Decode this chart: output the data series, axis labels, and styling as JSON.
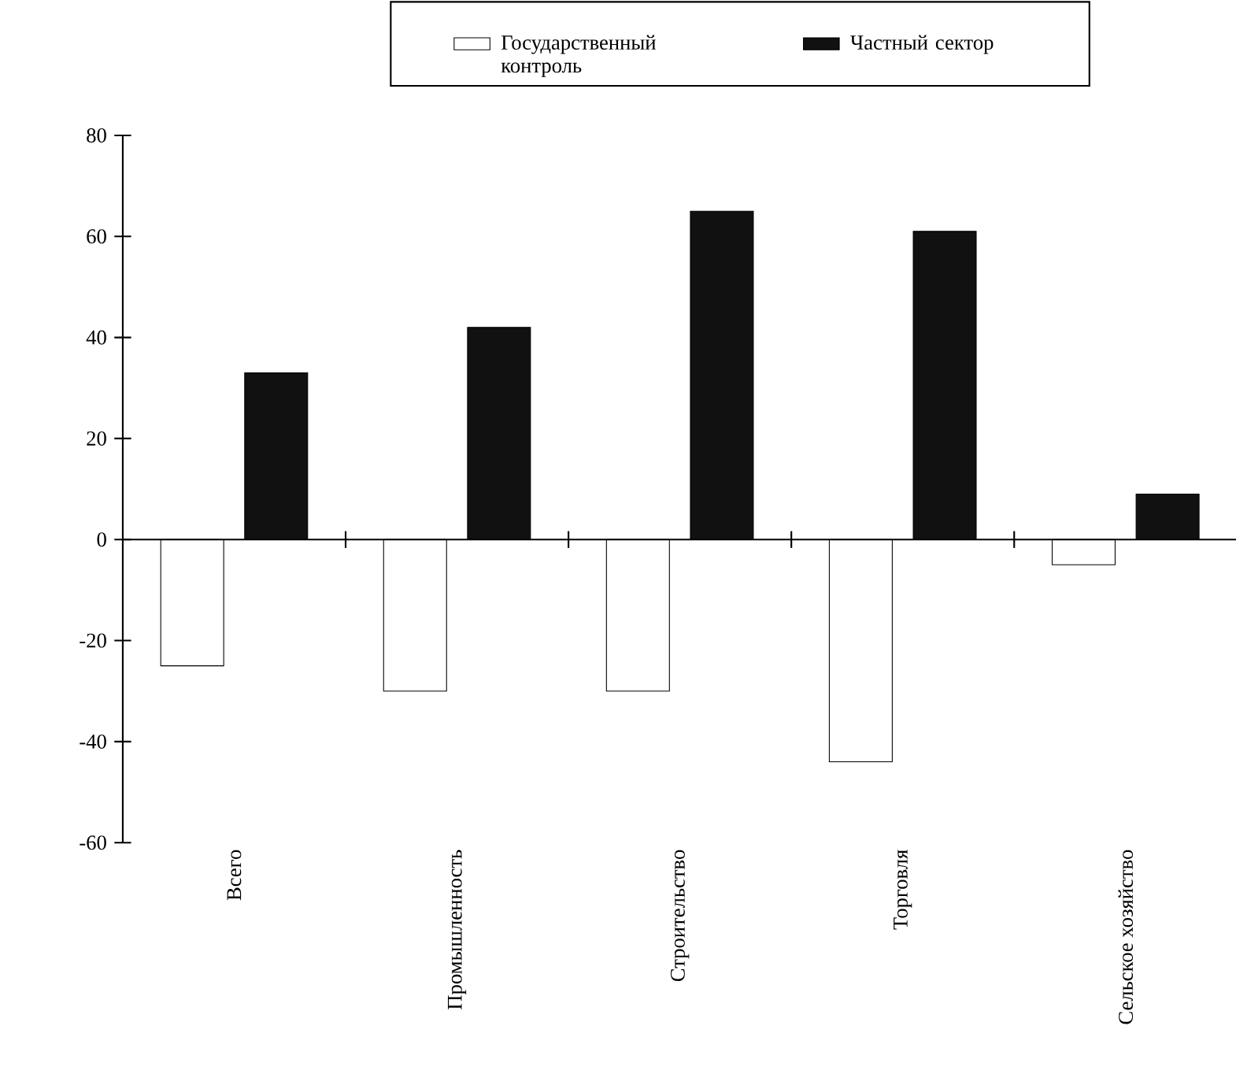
{
  "chart_data": {
    "type": "bar",
    "categories": [
      "Всего",
      "Промышленность",
      "Строительство",
      "Торговля",
      "Сельское хозяйство"
    ],
    "series": [
      {
        "name": "Государственный контроль",
        "color": "#ffffff",
        "values": [
          -25,
          -30,
          -30,
          -44,
          -5
        ]
      },
      {
        "name": "Частный сектор",
        "color": "#111111",
        "values": [
          33,
          42,
          65,
          61,
          9
        ]
      }
    ],
    "ylim": [
      -60,
      80
    ],
    "yticks": [
      -60,
      -40,
      -20,
      0,
      20,
      40,
      60,
      80
    ],
    "legend": "top"
  }
}
